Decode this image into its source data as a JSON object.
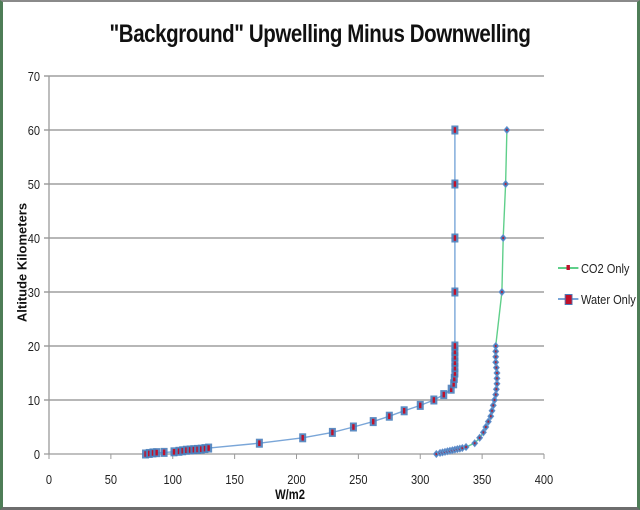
{
  "chart_data": {
    "type": "line",
    "title": "\"Background\" Upwelling Minus Downwelling",
    "xlabel": "W/m2",
    "ylabel": "Altitude Kilometers",
    "xlim": [
      0,
      400
    ],
    "ylim": [
      0,
      70
    ],
    "x_ticks": [
      0,
      50,
      100,
      150,
      200,
      250,
      300,
      350,
      400
    ],
    "y_ticks": [
      0,
      10,
      20,
      30,
      40,
      50,
      60,
      70
    ],
    "grid": "horizontal",
    "legend_position": "right",
    "series": [
      {
        "name": "CO2 Only",
        "line_color": "#5fcf8a",
        "marker": "diamond",
        "marker_color": "#4a7ebb",
        "points": [
          [
            313,
            0
          ],
          [
            316,
            0.2
          ],
          [
            318,
            0.3
          ],
          [
            320,
            0.4
          ],
          [
            322,
            0.5
          ],
          [
            324,
            0.6
          ],
          [
            326,
            0.7
          ],
          [
            328,
            0.8
          ],
          [
            330,
            0.9
          ],
          [
            332,
            1.0
          ],
          [
            334,
            1.1
          ],
          [
            337,
            1.3
          ],
          [
            344,
            2
          ],
          [
            348,
            3
          ],
          [
            351,
            4
          ],
          [
            353,
            5
          ],
          [
            355,
            6
          ],
          [
            357,
            7
          ],
          [
            358,
            8
          ],
          [
            359,
            9
          ],
          [
            360,
            10
          ],
          [
            361,
            11
          ],
          [
            361.5,
            12
          ],
          [
            362,
            13
          ],
          [
            362,
            14
          ],
          [
            362,
            15
          ],
          [
            361.5,
            16
          ],
          [
            361,
            17
          ],
          [
            361,
            18
          ],
          [
            361,
            19
          ],
          [
            361,
            20
          ],
          [
            366,
            30
          ],
          [
            367,
            40
          ],
          [
            369,
            50
          ],
          [
            370,
            60
          ]
        ]
      },
      {
        "name": "Water Only",
        "line_color": "#7aa6d8",
        "marker": "square",
        "marker_color": "#c0102a",
        "marker_edge": "#4a7ebb",
        "points": [
          [
            78,
            0
          ],
          [
            81,
            0.1
          ],
          [
            84,
            0.2
          ],
          [
            87,
            0.25
          ],
          [
            93,
            0.3
          ],
          [
            101,
            0.4
          ],
          [
            105,
            0.5
          ],
          [
            108,
            0.6
          ],
          [
            111,
            0.7
          ],
          [
            114,
            0.75
          ],
          [
            117,
            0.8
          ],
          [
            120,
            0.85
          ],
          [
            123,
            0.9
          ],
          [
            126,
            1.0
          ],
          [
            129,
            1.1
          ],
          [
            170,
            2
          ],
          [
            205,
            3
          ],
          [
            229,
            4
          ],
          [
            246,
            5
          ],
          [
            262,
            6
          ],
          [
            275,
            7
          ],
          [
            287,
            8
          ],
          [
            300,
            9
          ],
          [
            311,
            10
          ],
          [
            319,
            11
          ],
          [
            325,
            12
          ],
          [
            327,
            13
          ],
          [
            327.5,
            14
          ],
          [
            328,
            15
          ],
          [
            328,
            16
          ],
          [
            328,
            17
          ],
          [
            328,
            18
          ],
          [
            328,
            19
          ],
          [
            328,
            20
          ],
          [
            328,
            30
          ],
          [
            328,
            40
          ],
          [
            328,
            50
          ],
          [
            328,
            60
          ]
        ]
      }
    ]
  },
  "labels": {
    "title": "\"Background\" Upwelling Minus Downwelling",
    "xlabel": "W/m2",
    "ylabel": "Altitude Kilometers",
    "legend": [
      "CO2 Only",
      "Water Only"
    ]
  },
  "colors": {
    "gridline": "#8c8c8c",
    "axis": "#9a9a9a",
    "frame_side": "#4e7d57"
  }
}
